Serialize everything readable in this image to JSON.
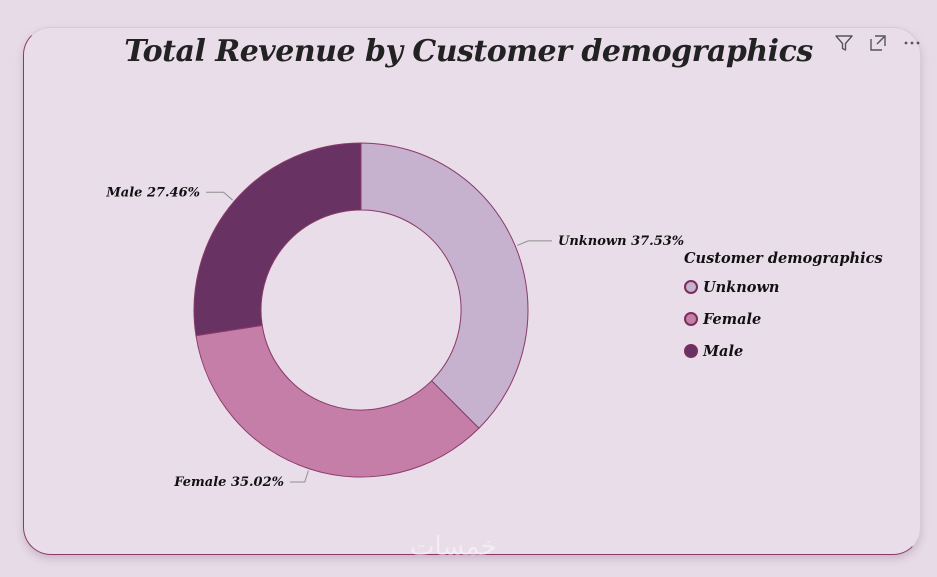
{
  "visual": {
    "title": "Total Revenue by Customer demographics",
    "toolbar": [
      {
        "name": "filter-icon"
      },
      {
        "name": "focus-mode-icon"
      },
      {
        "name": "more-options-icon"
      }
    ],
    "watermark": "خمسات"
  },
  "chart_data": {
    "type": "pie",
    "variant": "donut",
    "title": "Total Revenue by Customer demographics",
    "legend_title": "Customer demographics",
    "legend_position": "right",
    "slices": [
      {
        "label": "Unknown",
        "value": 37.53,
        "data_label": "Unknown 37.53%",
        "color": "#c6b1cf"
      },
      {
        "label": "Female",
        "value": 35.02,
        "data_label": "Female 35.02%",
        "color": "#c57ea8"
      },
      {
        "label": "Male",
        "value": 27.46,
        "data_label": "Male 27.46%",
        "color": "#683363"
      }
    ],
    "border_color": "#8a3a68"
  }
}
